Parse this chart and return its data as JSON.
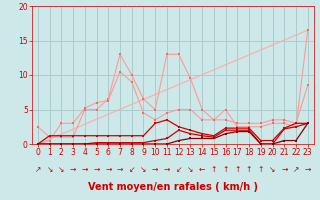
{
  "background_color": "#cce8e8",
  "grid_color": "#aacccc",
  "xlabel": "Vent moyen/en rafales ( km/h )",
  "xlim": [
    -0.5,
    23.5
  ],
  "ylim": [
    0,
    20
  ],
  "yticks": [
    0,
    5,
    10,
    15,
    20
  ],
  "xticks": [
    0,
    1,
    2,
    3,
    4,
    5,
    6,
    7,
    8,
    9,
    10,
    11,
    12,
    13,
    14,
    15,
    16,
    17,
    18,
    19,
    20,
    21,
    22,
    23
  ],
  "line1_x": [
    0,
    1,
    2,
    3,
    4,
    5,
    6,
    7,
    8,
    9,
    10,
    11,
    12,
    13,
    14,
    15,
    16,
    17,
    18,
    19,
    20,
    21,
    22,
    23
  ],
  "line1_y": [
    2.5,
    1.0,
    1.0,
    1.0,
    5.0,
    5.0,
    6.5,
    13.0,
    10.0,
    6.5,
    5.0,
    13.0,
    13.0,
    9.5,
    5.0,
    3.5,
    5.0,
    2.5,
    2.5,
    2.5,
    3.0,
    3.0,
    2.5,
    16.5
  ],
  "line1_color": "#ff9999",
  "line2_x": [
    0,
    1,
    2,
    3,
    4,
    5,
    6,
    7,
    8,
    9,
    10,
    11,
    12,
    13,
    14,
    15,
    16,
    17,
    18,
    19,
    20,
    21,
    22,
    23
  ],
  "line2_y": [
    0.0,
    0.5,
    3.0,
    3.0,
    5.2,
    6.0,
    6.3,
    10.5,
    9.0,
    4.5,
    3.5,
    4.5,
    5.0,
    5.0,
    3.5,
    3.5,
    3.5,
    3.0,
    3.0,
    3.0,
    3.5,
    3.5,
    3.0,
    8.5
  ],
  "line2_color": "#ff9999",
  "line3_x": [
    0,
    1,
    2,
    3,
    4,
    5,
    6,
    7,
    8,
    9,
    10,
    11,
    12,
    13,
    14,
    15,
    16,
    17,
    18,
    19,
    20,
    21,
    22,
    23
  ],
  "line3_y": [
    0.0,
    1.2,
    1.2,
    1.2,
    1.2,
    1.2,
    1.2,
    1.2,
    1.2,
    1.2,
    3.0,
    3.5,
    2.5,
    2.0,
    1.5,
    1.2,
    2.3,
    2.3,
    2.3,
    0.5,
    0.5,
    2.3,
    3.0,
    3.0
  ],
  "line3_color": "#cc0000",
  "line4_x": [
    0,
    1,
    2,
    3,
    4,
    5,
    6,
    7,
    8,
    9,
    10,
    11,
    12,
    13,
    14,
    15,
    16,
    17,
    18,
    19,
    20,
    21,
    22,
    23
  ],
  "line4_y": [
    0.0,
    0.0,
    0.0,
    0.0,
    0.0,
    0.2,
    0.2,
    0.2,
    0.2,
    0.2,
    0.5,
    0.8,
    2.0,
    1.5,
    1.2,
    1.0,
    2.0,
    2.0,
    2.0,
    0.0,
    0.0,
    2.2,
    2.5,
    3.0
  ],
  "line4_color": "#cc0000",
  "line5_x": [
    0,
    1,
    2,
    3,
    4,
    5,
    6,
    7,
    8,
    9,
    10,
    11,
    12,
    13,
    14,
    15,
    16,
    17,
    18,
    19,
    20,
    21,
    22,
    23
  ],
  "line5_y": [
    0.0,
    0.0,
    0.0,
    0.0,
    0.0,
    0.0,
    0.0,
    0.0,
    0.0,
    0.0,
    0.0,
    0.0,
    0.5,
    0.8,
    0.8,
    0.8,
    1.5,
    1.8,
    1.8,
    0.0,
    0.0,
    0.5,
    0.5,
    3.0
  ],
  "line5_color": "#880000",
  "trend_x": [
    0,
    23
  ],
  "trend_y": [
    0.0,
    16.5
  ],
  "trend_color": "#ffaaaa",
  "marker_color": "#ff6666",
  "marker_size": 1.8,
  "tick_color": "#cc0000",
  "tick_fontsize": 5.5,
  "xlabel_fontsize": 7.0,
  "xlabel_color": "#cc0000",
  "arrows": [
    "↗",
    "↘",
    "↘",
    "→",
    "→",
    "→",
    "→",
    "→",
    "↙",
    "↘",
    "→",
    "→",
    "↙",
    "↘",
    "←",
    "↑",
    "↑",
    "↑",
    "↑",
    "↑",
    "↘",
    "→",
    "↗",
    "→"
  ]
}
